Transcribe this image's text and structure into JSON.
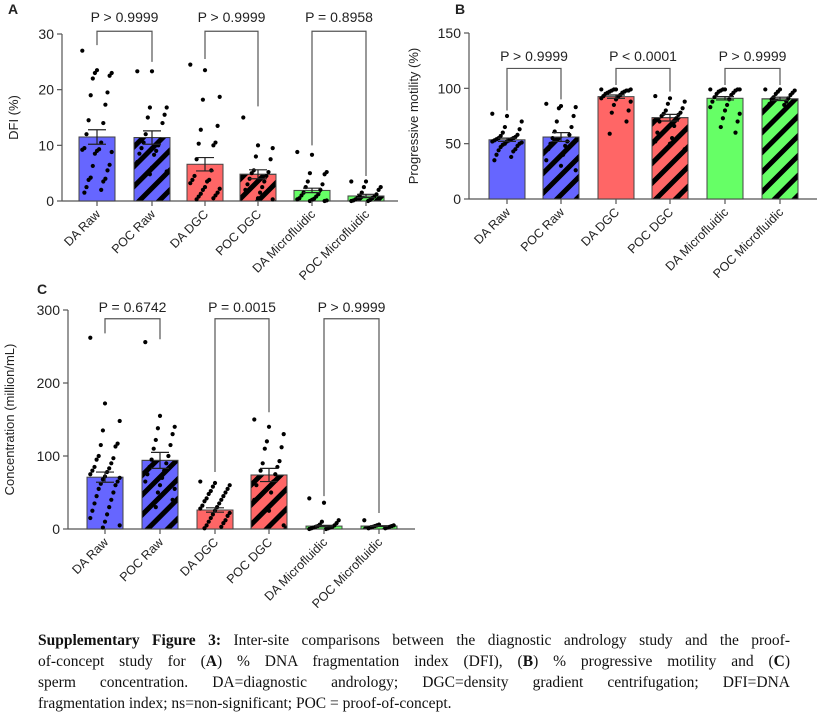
{
  "colors": {
    "raw": "#6666ff",
    "dgc": "#ff6666",
    "microfluidic": "#66ff66",
    "axis": "#555555",
    "hatch": "#000000"
  },
  "chart_data": [
    {
      "panel": "A",
      "type": "bar",
      "ylabel": "DFI (%)",
      "ylim": [
        0,
        30
      ],
      "yticks": [
        0,
        10,
        20,
        30
      ],
      "categories": [
        "DA Raw",
        "POC Raw",
        "DA DGC",
        "POC DGC",
        "DA Microfluidic",
        "POC Microfluidic"
      ],
      "group": [
        "raw",
        "raw",
        "dgc",
        "dgc",
        "microfluidic",
        "microfluidic"
      ],
      "hatched": [
        false,
        true,
        false,
        true,
        false,
        true
      ],
      "values": [
        11.5,
        11.4,
        6.6,
        4.8,
        1.9,
        0.9
      ],
      "sem": [
        1.3,
        1.2,
        1.2,
        0.8,
        0.4,
        0.3
      ],
      "points": [
        [
          27,
          23.5,
          23,
          23,
          22.5,
          22,
          19.5,
          19,
          17.3,
          14.5,
          14,
          12,
          10.5,
          9.5,
          9.3,
          9.2,
          9,
          8.8,
          8.5,
          6.5,
          6.3,
          5.5,
          4.2,
          4,
          3.8,
          3.5,
          2.5,
          2,
          1.5
        ],
        [
          23.3,
          23.3,
          16.8,
          16.8,
          15.5,
          15,
          14,
          12,
          11,
          10.5,
          10,
          9.5,
          9,
          8.5,
          8.3,
          7,
          6,
          5.3,
          4.8
        ],
        [
          24.5,
          23.5,
          18.7,
          18.2,
          13.5,
          12.8,
          10.5,
          10.3,
          10,
          7.5,
          5.5,
          4.5,
          3.8,
          3.8,
          3.5,
          3.2,
          2.5,
          2.2,
          2,
          1.5,
          1.3,
          1,
          0.8,
          0.5,
          0.3
        ],
        [
          15,
          10,
          9.5,
          8,
          7.5,
          5.5,
          5.2,
          5,
          4.5,
          4,
          3.5,
          3,
          2.5,
          2,
          1.5,
          1,
          0.5,
          0.3
        ],
        [
          8.8,
          8.3,
          5.2,
          5,
          4.8,
          3.5,
          3,
          2.5,
          2,
          1.5,
          1.2,
          1,
          0.8,
          0.5,
          0.4,
          0.3,
          0.2,
          0.1,
          0,
          0
        ],
        [
          3.5,
          3.5,
          2.5,
          2.5,
          2,
          1.5,
          1.2,
          1,
          0.8,
          0.6,
          0.5,
          0.3,
          0.2,
          0.1,
          0,
          0
        ]
      ],
      "comparisons": [
        {
          "pair": [
            0,
            1
          ],
          "label": "P > 0.9999",
          "top": 30.5,
          "legs": [
            28,
            25
          ]
        },
        {
          "pair": [
            2,
            3
          ],
          "label": "P > 0.9999",
          "top": 30.5,
          "legs": [
            25.5,
            17
          ]
        },
        {
          "pair": [
            4,
            5
          ],
          "label": "P = 0.8958",
          "top": 30.5,
          "legs": [
            10,
            4.5
          ]
        }
      ]
    },
    {
      "panel": "B",
      "type": "bar",
      "ylabel": "Progressive motility (%)",
      "ylim": [
        0,
        150
      ],
      "yticks": [
        0,
        50,
        100,
        150
      ],
      "categories": [
        "DA Raw",
        "POC Raw",
        "DA DGC",
        "POC DGC",
        "DA Microfluidic",
        "POC Microfluidic"
      ],
      "group": [
        "raw",
        "raw",
        "dgc",
        "dgc",
        "microfluidic",
        "microfluidic"
      ],
      "hatched": [
        false,
        true,
        false,
        true,
        false,
        true
      ],
      "values": [
        53.5,
        56,
        92.5,
        73.5,
        91,
        90.5
      ],
      "sem": [
        1.5,
        4,
        1.5,
        3,
        1.5,
        1.5
      ],
      "points": [
        [
          77,
          75,
          70,
          65,
          63,
          60,
          58,
          57,
          56,
          55,
          55,
          54,
          54,
          53,
          53,
          52,
          52,
          51,
          50,
          50,
          49,
          48,
          47,
          45,
          44,
          43,
          40,
          38,
          35
        ],
        [
          86,
          84,
          83,
          82,
          75,
          70,
          65,
          61,
          58,
          55,
          52,
          50,
          48,
          45,
          40,
          35,
          30,
          26
        ],
        [
          99,
          99,
          99,
          99,
          98,
          98,
          98,
          97,
          97,
          96,
          96,
          95,
          94,
          93,
          92,
          91,
          90,
          88,
          85,
          80,
          78,
          70,
          59
        ],
        [
          93,
          91,
          88,
          86,
          82,
          80,
          78,
          77,
          76,
          75,
          73,
          70,
          66,
          60,
          55,
          52,
          50,
          45
        ],
        [
          99,
          99,
          99,
          99,
          99,
          98,
          98,
          97,
          96,
          95,
          94,
          92,
          90,
          88,
          85,
          83,
          80,
          77,
          73,
          70,
          65,
          60
        ],
        [
          99,
          99,
          98,
          97,
          96,
          95,
          94,
          92,
          91,
          90,
          88,
          86,
          85,
          83
        ]
      ],
      "comparisons": [
        {
          "pair": [
            0,
            1
          ],
          "label": "P > 0.9999",
          "top": 118,
          "legs": [
            80,
            90
          ]
        },
        {
          "pair": [
            2,
            3
          ],
          "label": "P < 0.0001",
          "top": 118,
          "legs": [
            103,
            97
          ]
        },
        {
          "pair": [
            4,
            5
          ],
          "label": "P > 0.9999",
          "top": 118,
          "legs": [
            103,
            103
          ]
        }
      ]
    },
    {
      "panel": "C",
      "type": "bar",
      "ylabel": "Concentration (million/mL)",
      "ylim": [
        0,
        300
      ],
      "yticks": [
        0,
        100,
        200,
        300
      ],
      "categories": [
        "DA Raw",
        "POC Raw",
        "DA DGC",
        "POC DGC",
        "DA Microfluidic",
        "POC Microfluidic"
      ],
      "group": [
        "raw",
        "raw",
        "dgc",
        "dgc",
        "microfluidic",
        "microfluidic"
      ],
      "hatched": [
        false,
        true,
        false,
        true,
        false,
        true
      ],
      "values": [
        71,
        94,
        26,
        74,
        4,
        4
      ],
      "sem": [
        7,
        11,
        3,
        9,
        1,
        0.5
      ],
      "points": [
        [
          262,
          172,
          148,
          135,
          117,
          115,
          113,
          100,
          97,
          95,
          90,
          85,
          83,
          80,
          78,
          75,
          72,
          70,
          68,
          65,
          62,
          60,
          55,
          50,
          45,
          40,
          35,
          30,
          25,
          20,
          15,
          10,
          5,
          2
        ],
        [
          256,
          155,
          140,
          138,
          130,
          122,
          115,
          110,
          100,
          95,
          90,
          85,
          80,
          75,
          70,
          65,
          60,
          55,
          50,
          40,
          30
        ],
        [
          65,
          63,
          60,
          58,
          55,
          52,
          50,
          48,
          45,
          42,
          40,
          38,
          35,
          32,
          30,
          28,
          25,
          22,
          20,
          18,
          15,
          12,
          10,
          8,
          5,
          3,
          1
        ],
        [
          150,
          140,
          130,
          120,
          112,
          110,
          93,
          90,
          85,
          80,
          75,
          70,
          65,
          60,
          50,
          40,
          25,
          5
        ],
        [
          42,
          36,
          12,
          10,
          8,
          6,
          5,
          4,
          3,
          3,
          2,
          2,
          1,
          1,
          0,
          0
        ],
        [
          12,
          6,
          5,
          5,
          4,
          4,
          3,
          3,
          2,
          2,
          1,
          1
        ]
      ],
      "comparisons": [
        {
          "pair": [
            0,
            1
          ],
          "label": "P = 0.6742",
          "top": 288,
          "legs": [
            268,
            260
          ]
        },
        {
          "pair": [
            2,
            3
          ],
          "label": "P = 0.0015",
          "top": 288,
          "legs": [
            78,
            160
          ]
        },
        {
          "pair": [
            4,
            5
          ],
          "label": "P > 0.9999",
          "top": 288,
          "legs": [
            45,
            22
          ]
        }
      ]
    }
  ],
  "caption": {
    "title": "Supplementary Figure 3:",
    "line1": " Inter-site comparisons between the diagnostic andrology study and the proof-",
    "line2a": "of-concept study for (",
    "A": "A",
    "line2b": ") % DNA fragmentation index (DFI), (",
    "B": "B",
    "line2c": ") % progressive motility and (",
    "C": "C",
    "line2d": ")",
    "line3": "sperm concentration. DA=diagnostic andrology; DGC=density gradient centrifugation; DFI=DNA",
    "line4": "fragmentation index; ns=non-significant; POC = proof-of-concept."
  }
}
